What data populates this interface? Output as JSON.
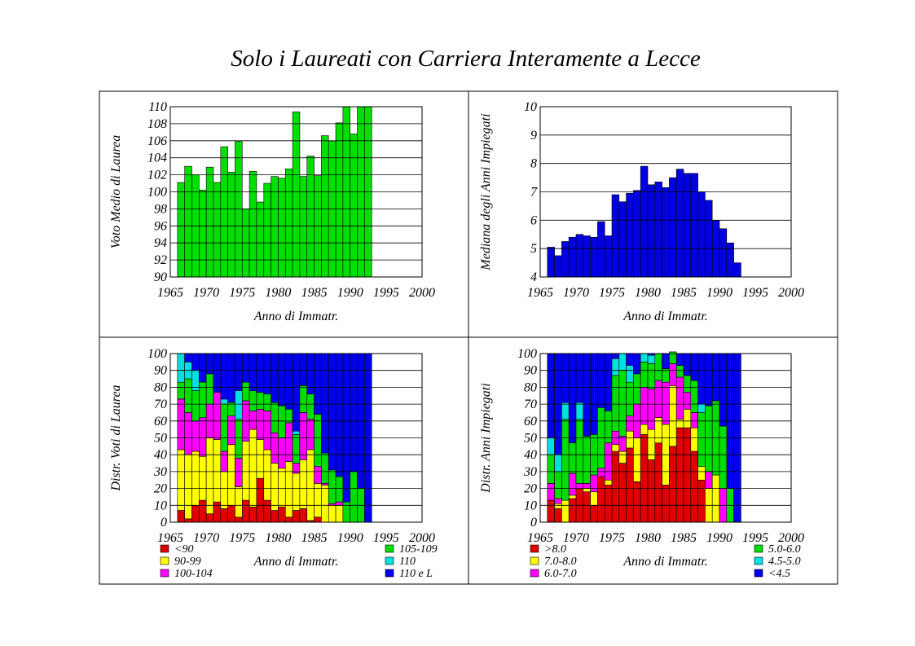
{
  "title": "Solo i Laureati con Carriera Interamente a Lecce",
  "chart_data": [
    {
      "id": "voto",
      "type": "bar",
      "xlabel": "Anno di Immatr.",
      "ylabel": "Voto Medio di Laurea",
      "xlim": [
        1965,
        2000
      ],
      "ylim": [
        90,
        110
      ],
      "xticks": [
        1965,
        1970,
        1975,
        1980,
        1985,
        1990,
        1995,
        2000
      ],
      "yticks": [
        90,
        92,
        94,
        96,
        98,
        100,
        102,
        104,
        106,
        108,
        110
      ],
      "grid": true,
      "color": "#00e000",
      "x": [
        1966,
        1967,
        1968,
        1969,
        1970,
        1971,
        1972,
        1973,
        1974,
        1975,
        1976,
        1977,
        1978,
        1979,
        1980,
        1981,
        1982,
        1983,
        1984,
        1985,
        1986,
        1987,
        1988,
        1989,
        1990,
        1991,
        1992
      ],
      "values": [
        101.1,
        103.0,
        102.0,
        100.2,
        102.9,
        101.1,
        105.3,
        102.3,
        105.9,
        98.0,
        102.4,
        98.8,
        101.0,
        101.8,
        101.6,
        102.7,
        109.4,
        101.8,
        104.2,
        101.9,
        106.6,
        106.0,
        108.1,
        110.0,
        106.8,
        110.0,
        110.0
      ]
    },
    {
      "id": "mediana",
      "type": "bar",
      "xlabel": "Anno di Immatr.",
      "ylabel": "Mediana degli Anni Impiegati",
      "xlim": [
        1965,
        2000
      ],
      "ylim": [
        4,
        10
      ],
      "xticks": [
        1965,
        1970,
        1975,
        1980,
        1985,
        1990,
        1995,
        2000
      ],
      "yticks": [
        4,
        5,
        6,
        7,
        8,
        9,
        10
      ],
      "grid": true,
      "color": "#0000e0",
      "x": [
        1966,
        1967,
        1968,
        1969,
        1970,
        1971,
        1972,
        1973,
        1974,
        1975,
        1976,
        1977,
        1978,
        1979,
        1980,
        1981,
        1982,
        1983,
        1984,
        1985,
        1986,
        1987,
        1988,
        1989,
        1990,
        1991,
        1992
      ],
      "values": [
        5.05,
        4.75,
        5.25,
        5.4,
        5.5,
        5.45,
        5.4,
        5.95,
        5.45,
        6.9,
        6.65,
        6.95,
        7.05,
        7.9,
        7.25,
        7.35,
        7.15,
        7.5,
        7.8,
        7.65,
        7.65,
        7.0,
        6.7,
        6.0,
        5.7,
        5.2,
        4.5
      ]
    },
    {
      "id": "distr-voti",
      "type": "bar",
      "stacked": true,
      "xlabel": "Anno di Immatr.",
      "ylabel": "Distr. Voti di Laurea",
      "xlim": [
        1965,
        2000
      ],
      "ylim": [
        0,
        100
      ],
      "xticks": [
        1965,
        1970,
        1975,
        1980,
        1985,
        1990,
        1995,
        2000
      ],
      "yticks": [
        0,
        10,
        20,
        30,
        40,
        50,
        60,
        70,
        80,
        90,
        100
      ],
      "grid": true,
      "x": [
        1966,
        1967,
        1968,
        1969,
        1970,
        1971,
        1972,
        1973,
        1974,
        1975,
        1976,
        1977,
        1978,
        1979,
        1980,
        1981,
        1982,
        1983,
        1984,
        1985,
        1986,
        1987,
        1988,
        1989,
        1990,
        1991,
        1992
      ],
      "legend": {
        "left": [
          "<90",
          "90-99",
          "100-104"
        ],
        "right": [
          "105-109",
          "110",
          "110 e L"
        ]
      },
      "series": [
        {
          "name": "<90",
          "color": "#e00000",
          "values": [
            7,
            2,
            10,
            13,
            5,
            12,
            8,
            10,
            3,
            13,
            9,
            26,
            13,
            7,
            9,
            3,
            7,
            8,
            1,
            3,
            0,
            0,
            0,
            0,
            0,
            0,
            0
          ]
        },
        {
          "name": "90-99",
          "color": "#ffff00",
          "values": [
            36,
            38,
            32,
            26,
            45,
            37,
            22,
            36,
            18,
            35,
            46,
            23,
            30,
            28,
            23,
            33,
            22,
            29,
            42,
            20,
            22,
            10,
            10,
            0,
            0,
            0,
            0
          ]
        },
        {
          "name": "100-104",
          "color": "#ff00ff",
          "values": [
            30,
            25,
            18,
            23,
            20,
            28,
            12,
            17,
            17,
            24,
            11,
            18,
            23,
            18,
            18,
            23,
            6,
            28,
            18,
            10,
            1,
            1,
            2,
            0,
            0,
            0,
            0
          ]
        },
        {
          "name": "105-109",
          "color": "#00dd00",
          "values": [
            10,
            20,
            18,
            21,
            18,
            0,
            28,
            8,
            23,
            11,
            12,
            10,
            10,
            18,
            19,
            8,
            17,
            16,
            15,
            31,
            18,
            20,
            15,
            12,
            30,
            20,
            0
          ]
        },
        {
          "name": "110",
          "color": "#00e0e0",
          "values": [
            17,
            10,
            12,
            0,
            0,
            0,
            3,
            0,
            17,
            0,
            0,
            0,
            0,
            0,
            0,
            0,
            2,
            0,
            0,
            0,
            0,
            0,
            0,
            0,
            0,
            0,
            0
          ]
        },
        {
          "name": "110 e L",
          "color": "#0000ee",
          "values": [
            0,
            5,
            10,
            17,
            12,
            23,
            27,
            29,
            22,
            17,
            22,
            23,
            24,
            29,
            31,
            33,
            46,
            19,
            24,
            36,
            59,
            69,
            73,
            88,
            70,
            80,
            100
          ]
        }
      ]
    },
    {
      "id": "distr-anni",
      "type": "bar",
      "stacked": true,
      "xlabel": "Anno di Immatr.",
      "ylabel": "Distr. Anni Impiegati",
      "xlim": [
        1965,
        2000
      ],
      "ylim": [
        0,
        100
      ],
      "xticks": [
        1965,
        1970,
        1975,
        1980,
        1985,
        1990,
        1995,
        2000
      ],
      "yticks": [
        0,
        10,
        20,
        30,
        40,
        50,
        60,
        70,
        80,
        90,
        100
      ],
      "grid": true,
      "x": [
        1966,
        1967,
        1968,
        1969,
        1970,
        1971,
        1972,
        1973,
        1974,
        1975,
        1976,
        1977,
        1978,
        1979,
        1980,
        1981,
        1982,
        1983,
        1984,
        1985,
        1986,
        1987,
        1988,
        1989,
        1990,
        1991,
        1992
      ],
      "legend": {
        "left": [
          ">8.0",
          "7.0-8.0",
          "6.0-7.0"
        ],
        "right": [
          "5.0-6.0",
          "4.5-5.0",
          "<4.5"
        ]
      },
      "series": [
        {
          "name": ">8.0",
          "color": "#e00000",
          "values": [
            13,
            8,
            0,
            14,
            20,
            18,
            10,
            27,
            22,
            42,
            35,
            44,
            24,
            52,
            37,
            47,
            22,
            45,
            56,
            56,
            42,
            25,
            0,
            0,
            0,
            0,
            0
          ]
        },
        {
          "name": "7.0-8.0",
          "color": "#ffff00",
          "values": [
            0,
            3,
            13,
            2,
            0,
            2,
            8,
            0,
            3,
            4,
            7,
            10,
            26,
            6,
            18,
            15,
            36,
            36,
            5,
            11,
            14,
            8,
            20,
            28,
            0,
            0,
            0
          ]
        },
        {
          "name": "6.0-7.0",
          "color": "#ff00ff",
          "values": [
            10,
            3,
            0,
            13,
            3,
            3,
            10,
            5,
            22,
            8,
            9,
            9,
            20,
            22,
            24,
            22,
            25,
            13,
            25,
            10,
            9,
            0,
            10,
            0,
            20,
            0,
            0
          ]
        },
        {
          "name": "5.0-6.0",
          "color": "#00dd00",
          "values": [
            17,
            16,
            48,
            18,
            38,
            28,
            24,
            36,
            19,
            33,
            39,
            20,
            18,
            15,
            15,
            16,
            8,
            7,
            7,
            10,
            19,
            32,
            39,
            44,
            37,
            20,
            0
          ]
        },
        {
          "name": "4.5-5.0",
          "color": "#00e0e0",
          "values": [
            10,
            10,
            10,
            0,
            10,
            0,
            0,
            0,
            0,
            10,
            10,
            10,
            0,
            5,
            5,
            0,
            0,
            0,
            0,
            0,
            0,
            5,
            0,
            0,
            0,
            0,
            0
          ]
        },
        {
          "name": "<4.5",
          "color": "#0000ee",
          "values": [
            50,
            60,
            29,
            53,
            29,
            49,
            48,
            32,
            34,
            3,
            0,
            7,
            12,
            0,
            1,
            0,
            9,
            0,
            7,
            13,
            16,
            30,
            31,
            28,
            43,
            80,
            100
          ]
        }
      ]
    }
  ]
}
